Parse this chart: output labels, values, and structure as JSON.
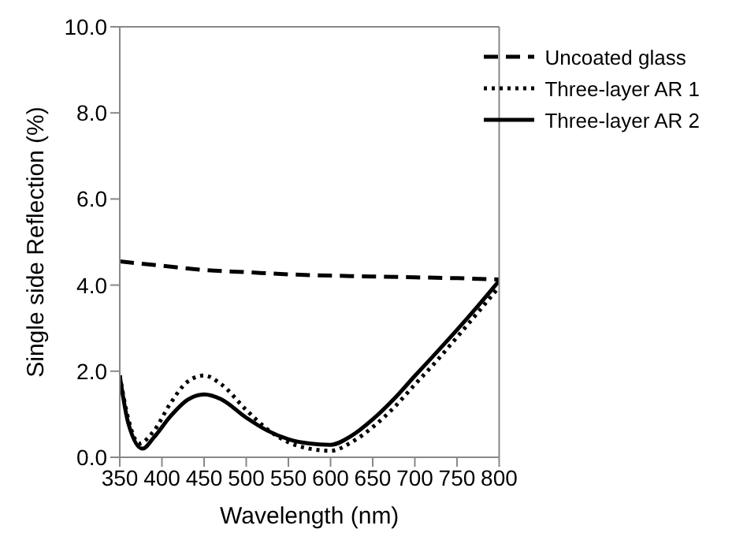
{
  "chart_data": {
    "type": "line",
    "xlabel": "Wavelength (nm)",
    "ylabel": "Single side Reflection (%)",
    "series": [
      {
        "name": "Uncoated glass",
        "color": "#000000",
        "line_style": "dashed",
        "x": [
          350,
          400,
          450,
          500,
          550,
          600,
          650,
          700,
          750,
          800
        ],
        "values": [
          4.55,
          4.45,
          4.35,
          4.3,
          4.25,
          4.22,
          4.2,
          4.18,
          4.16,
          4.13
        ]
      },
      {
        "name": "Three-layer AR 1",
        "color": "#000000",
        "line_style": "dotted",
        "x": [
          350,
          360,
          373,
          390,
          410,
          430,
          450,
          470,
          500,
          525,
          550,
          575,
          600,
          625,
          650,
          675,
          700,
          725,
          750,
          775,
          800
        ],
        "values": [
          1.9,
          0.9,
          0.32,
          0.6,
          1.25,
          1.75,
          1.9,
          1.7,
          1.1,
          0.65,
          0.35,
          0.2,
          0.15,
          0.35,
          0.7,
          1.15,
          1.69,
          2.22,
          2.79,
          3.37,
          3.96
        ]
      },
      {
        "name": "Three-layer AR 2",
        "color": "#000000",
        "line_style": "solid",
        "x": [
          350,
          360,
          377,
          390,
          410,
          430,
          450,
          470,
          500,
          525,
          550,
          575,
          600,
          625,
          650,
          675,
          700,
          725,
          750,
          775,
          800
        ],
        "values": [
          1.9,
          0.8,
          0.2,
          0.45,
          0.95,
          1.33,
          1.46,
          1.35,
          0.92,
          0.62,
          0.42,
          0.32,
          0.29,
          0.5,
          0.88,
          1.35,
          1.89,
          2.42,
          2.96,
          3.52,
          4.1
        ]
      }
    ],
    "xlim": [
      350,
      800
    ],
    "xticks": [
      350,
      400,
      450,
      500,
      550,
      600,
      650,
      700,
      750,
      800
    ],
    "ylim": [
      0,
      10
    ],
    "yticks": [
      {
        "value": 0,
        "label": "0.0"
      },
      {
        "value": 2,
        "label": "2.0"
      },
      {
        "value": 4,
        "label": "4.0"
      },
      {
        "value": 6,
        "label": "6.0"
      },
      {
        "value": 8,
        "label": "8.0"
      },
      {
        "value": 10,
        "label": "10.0"
      }
    ],
    "grid": false,
    "legend": "top right",
    "marker": "none"
  }
}
